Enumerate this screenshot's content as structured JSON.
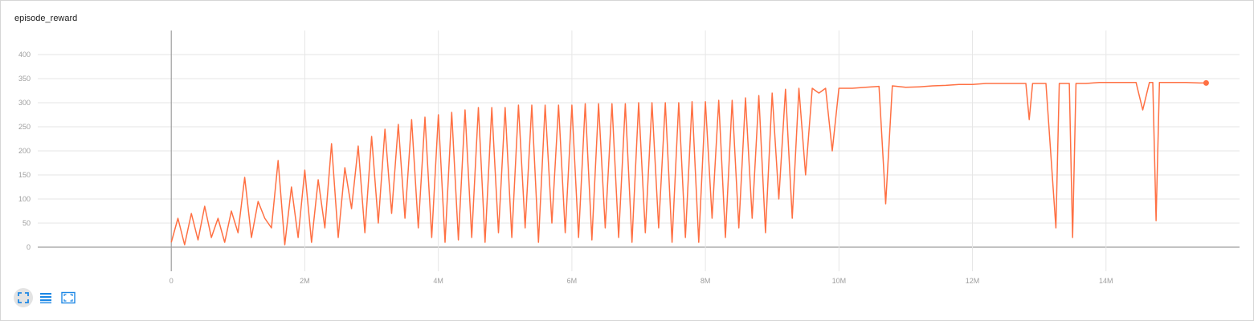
{
  "card": {
    "title": "episode_reward"
  },
  "colors": {
    "series": "#ff7043",
    "grid": "#e6e6e6",
    "axis": "#9e9e9e",
    "icon": "#1e88e5"
  },
  "toolbar": {
    "buttons": [
      {
        "icon": "fit-domain-icon",
        "active": true
      },
      {
        "icon": "data-table-icon",
        "active": false
      },
      {
        "icon": "expand-icon",
        "active": false
      }
    ]
  },
  "chart_data": {
    "type": "line",
    "title": "episode_reward",
    "xlabel": "",
    "ylabel": "",
    "xlim": [
      -2000000,
      16000000
    ],
    "ylim": [
      -50,
      450
    ],
    "x_ticks": [
      0,
      2000000,
      4000000,
      6000000,
      8000000,
      10000000,
      12000000,
      14000000
    ],
    "x_tick_labels": [
      "0",
      "2M",
      "4M",
      "6M",
      "8M",
      "10M",
      "12M",
      "14M"
    ],
    "y_ticks": [
      0,
      50,
      100,
      150,
      200,
      250,
      300,
      350,
      400
    ],
    "y_tick_labels": [
      "0",
      "50",
      "100",
      "150",
      "200",
      "250",
      "300",
      "350",
      "400"
    ],
    "grid": true,
    "series": [
      {
        "color": "#ff7043",
        "x": [
          0,
          100000,
          200000,
          300000,
          400000,
          500000,
          600000,
          700000,
          800000,
          900000,
          1000000,
          1100000,
          1200000,
          1300000,
          1400000,
          1500000,
          1600000,
          1700000,
          1800000,
          1900000,
          2000000,
          2100000,
          2200000,
          2300000,
          2400000,
          2500000,
          2600000,
          2700000,
          2800000,
          2900000,
          3000000,
          3100000,
          3200000,
          3300000,
          3400000,
          3500000,
          3600000,
          3700000,
          3800000,
          3900000,
          4000000,
          4100000,
          4200000,
          4300000,
          4400000,
          4500000,
          4600000,
          4700000,
          4800000,
          4900000,
          5000000,
          5100000,
          5200000,
          5300000,
          5400000,
          5500000,
          5600000,
          5700000,
          5800000,
          5900000,
          6000000,
          6100000,
          6200000,
          6300000,
          6400000,
          6500000,
          6600000,
          6700000,
          6800000,
          6900000,
          7000000,
          7100000,
          7200000,
          7300000,
          7400000,
          7500000,
          7600000,
          7700000,
          7800000,
          7900000,
          8000000,
          8100000,
          8200000,
          8300000,
          8400000,
          8500000,
          8600000,
          8700000,
          8800000,
          8900000,
          9000000,
          9100000,
          9200000,
          9300000,
          9400000,
          9500000,
          9600000,
          9700000,
          9800000,
          9900000,
          10000000,
          10200000,
          10400000,
          10600000,
          10700000,
          10800000,
          11000000,
          11200000,
          11400000,
          11600000,
          11800000,
          12000000,
          12200000,
          12400000,
          12600000,
          12800000,
          12850000,
          12900000,
          13100000,
          13250000,
          13300000,
          13350000,
          13450000,
          13500000,
          13550000,
          13700000,
          13900000,
          14100000,
          14300000,
          14450000,
          14550000,
          14650000,
          14700000,
          14750000,
          14800000,
          15000000,
          15200000,
          15400000,
          15500000
        ],
        "y": [
          10,
          60,
          5,
          70,
          15,
          85,
          20,
          60,
          10,
          75,
          30,
          145,
          20,
          95,
          60,
          40,
          180,
          5,
          125,
          20,
          160,
          10,
          140,
          40,
          215,
          20,
          165,
          80,
          210,
          30,
          230,
          50,
          245,
          70,
          255,
          60,
          265,
          40,
          270,
          20,
          275,
          10,
          280,
          15,
          285,
          20,
          290,
          10,
          290,
          30,
          290,
          20,
          295,
          40,
          295,
          10,
          295,
          50,
          295,
          30,
          295,
          20,
          298,
          15,
          298,
          40,
          298,
          20,
          298,
          10,
          300,
          30,
          300,
          40,
          300,
          10,
          300,
          20,
          302,
          10,
          302,
          60,
          305,
          20,
          305,
          40,
          310,
          60,
          315,
          30,
          320,
          100,
          328,
          60,
          330,
          150,
          330,
          320,
          330,
          200,
          330,
          330,
          332,
          334,
          90,
          335,
          332,
          333,
          335,
          336,
          338,
          338,
          340,
          340,
          340,
          340,
          265,
          340,
          340,
          40,
          340,
          340,
          340,
          20,
          340,
          340,
          342,
          342,
          342,
          342,
          285,
          342,
          342,
          55,
          342,
          342,
          342,
          341,
          341
        ]
      }
    ]
  }
}
